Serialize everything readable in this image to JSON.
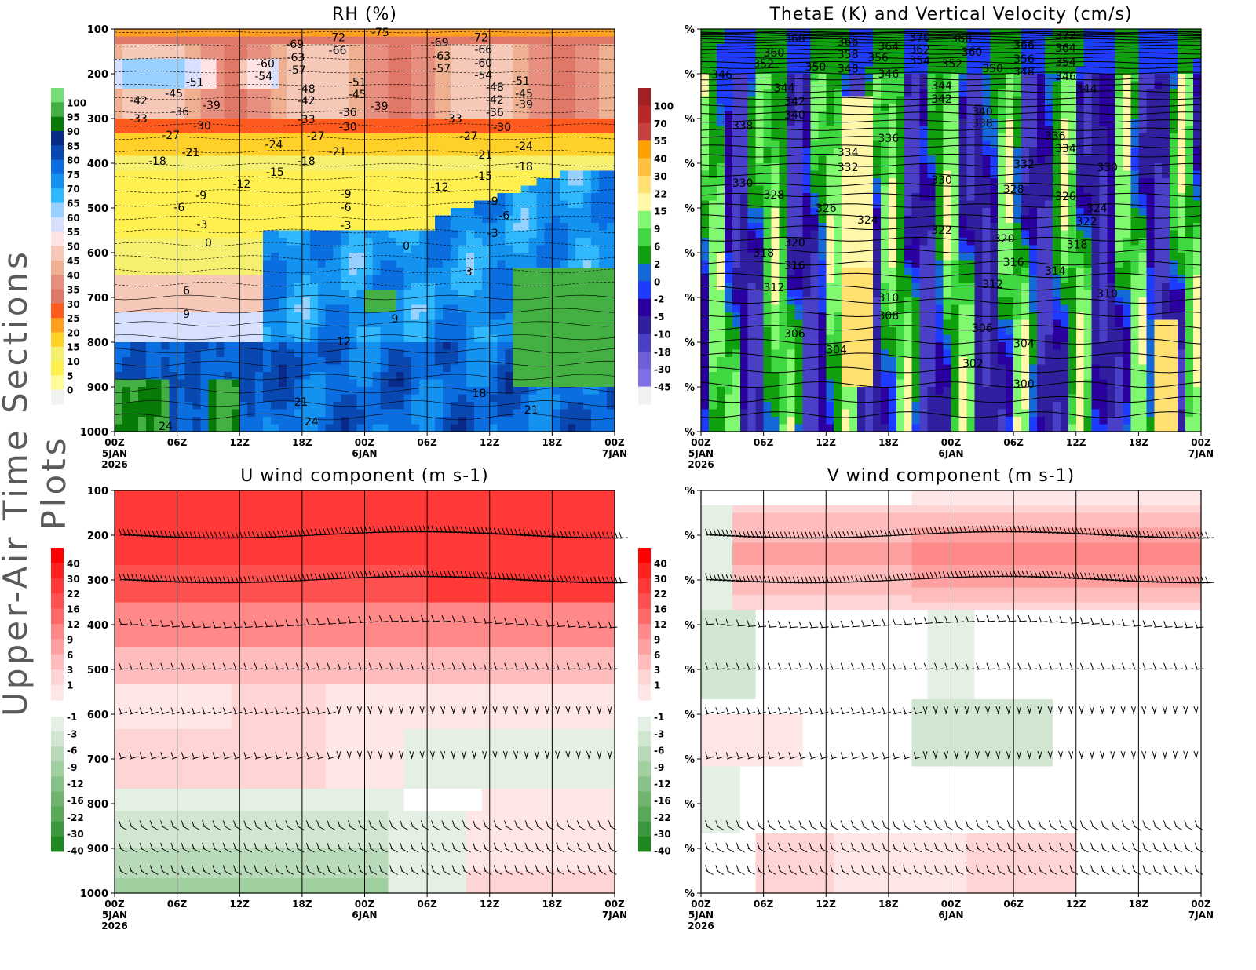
{
  "side_title": "Upper-Air Time Sections Plots",
  "colors": {
    "contour_line": "#000000",
    "grid_line": "#000000",
    "missing": "#f2f2f2"
  },
  "chart_data": [
    {
      "type": "heatmap",
      "title": "RH (%)",
      "y_axis": {
        "label": "",
        "ticks": [
          "100",
          "200",
          "300",
          "400",
          "500",
          "600",
          "700",
          "800",
          "900",
          "1000"
        ],
        "range": [
          100,
          1000
        ],
        "inverted": true
      },
      "x_axis": {
        "ticks": [
          "00Z",
          "06Z",
          "12Z",
          "18Z",
          "00Z",
          "06Z",
          "12Z",
          "18Z",
          "00Z"
        ],
        "date_labels": [
          {
            "at": "00Z 5JAN",
            "lines": [
              "5JAN",
              "2026"
            ]
          },
          {
            "at": "00Z 6JAN",
            "lines": [
              "6JAN"
            ]
          },
          {
            "at": "00Z 7JAN",
            "lines": [
              "7JAN"
            ]
          }
        ],
        "range_hours": [
          0,
          48
        ]
      },
      "grid": true,
      "colorbar": {
        "labels": [
          "100",
          "95",
          "90",
          "85",
          "80",
          "75",
          "70",
          "65",
          "60",
          "55",
          "50",
          "45",
          "40",
          "35",
          "30",
          "25",
          "20",
          "15",
          "10",
          "5",
          "0"
        ],
        "colors": [
          "#77dd77",
          "#44b044",
          "#087a08",
          "#0a2a8a",
          "#0848b0",
          "#0a6ee0",
          "#1492f0",
          "#30b8ff",
          "#98d0ff",
          "#d8e0ff",
          "#ffe2e4",
          "#f5c8b8",
          "#eeb090",
          "#e89080",
          "#e07868",
          "#ff5a1e",
          "#ffa01e",
          "#ffd028",
          "#f5f070",
          "#fff050",
          "#fffa9a",
          "#f2f2f2"
        ]
      },
      "contour_label_units": "temperature (C)",
      "contour_labels": [
        {
          "t": 25.5,
          "p": 107,
          "v": "-75"
        },
        {
          "t": 21.3,
          "p": 118,
          "v": "-72"
        },
        {
          "t": 35,
          "p": 118,
          "v": "-72"
        },
        {
          "t": 17.3,
          "p": 133,
          "v": "-69"
        },
        {
          "t": 31.2,
          "p": 130,
          "v": "-69"
        },
        {
          "t": 21.4,
          "p": 147,
          "v": "-66"
        },
        {
          "t": 35.4,
          "p": 146,
          "v": "-66"
        },
        {
          "t": 17.4,
          "p": 163,
          "v": "-63"
        },
        {
          "t": 31.4,
          "p": 160,
          "v": "-63"
        },
        {
          "t": 14.5,
          "p": 177,
          "v": "-60"
        },
        {
          "t": 35.4,
          "p": 175,
          "v": "-60"
        },
        {
          "t": 17.5,
          "p": 191,
          "v": "-57"
        },
        {
          "t": 31.4,
          "p": 188,
          "v": "-57"
        },
        {
          "t": 14.3,
          "p": 205,
          "v": "-54"
        },
        {
          "t": 35.4,
          "p": 203,
          "v": "-54"
        },
        {
          "t": 7.7,
          "p": 218,
          "v": "-51"
        },
        {
          "t": 23.3,
          "p": 218,
          "v": "-51"
        },
        {
          "t": 39,
          "p": 216,
          "v": "-51"
        },
        {
          "t": 18.4,
          "p": 233,
          "v": "-48"
        },
        {
          "t": 36.5,
          "p": 230,
          "v": "-48"
        },
        {
          "t": 5.7,
          "p": 244,
          "v": "-45"
        },
        {
          "t": 23.3,
          "p": 246,
          "v": "-45"
        },
        {
          "t": 39.3,
          "p": 244,
          "v": "-45"
        },
        {
          "t": 2.3,
          "p": 260,
          "v": "-42"
        },
        {
          "t": 18.4,
          "p": 260,
          "v": "-42"
        },
        {
          "t": 36.5,
          "p": 258,
          "v": "-42"
        },
        {
          "t": 9.3,
          "p": 270,
          "v": "-39"
        },
        {
          "t": 25.4,
          "p": 272,
          "v": "-39"
        },
        {
          "t": 39.3,
          "p": 268,
          "v": "-39"
        },
        {
          "t": 6.3,
          "p": 284,
          "v": "-36"
        },
        {
          "t": 22.4,
          "p": 286,
          "v": "-36"
        },
        {
          "t": 36.5,
          "p": 286,
          "v": "-36"
        },
        {
          "t": 2.3,
          "p": 300,
          "v": "-33"
        },
        {
          "t": 18.4,
          "p": 302,
          "v": "-33"
        },
        {
          "t": 32.5,
          "p": 300,
          "v": "-33"
        },
        {
          "t": 8.4,
          "p": 316,
          "v": "-30"
        },
        {
          "t": 22.4,
          "p": 318,
          "v": "-30"
        },
        {
          "t": 37.2,
          "p": 319,
          "v": "-30"
        },
        {
          "t": 5.4,
          "p": 337,
          "v": "-27"
        },
        {
          "t": 19.3,
          "p": 339,
          "v": "-27"
        },
        {
          "t": 34,
          "p": 339,
          "v": "-27"
        },
        {
          "t": 15.3,
          "p": 358,
          "v": "-24"
        },
        {
          "t": 39.3,
          "p": 361,
          "v": "-24"
        },
        {
          "t": 7.3,
          "p": 375,
          "v": "-21"
        },
        {
          "t": 21.4,
          "p": 374,
          "v": "-21"
        },
        {
          "t": 35.4,
          "p": 381,
          "v": "-21"
        },
        {
          "t": 4.1,
          "p": 395,
          "v": "-18"
        },
        {
          "t": 18.4,
          "p": 395,
          "v": "-18"
        },
        {
          "t": 39.3,
          "p": 407,
          "v": "-18"
        },
        {
          "t": 15.4,
          "p": 419,
          "v": "-15"
        },
        {
          "t": 35.4,
          "p": 428,
          "v": "-15"
        },
        {
          "t": 12.2,
          "p": 446,
          "v": "-12"
        },
        {
          "t": 31.2,
          "p": 453,
          "v": "-12"
        },
        {
          "t": 8.3,
          "p": 472,
          "v": "-9"
        },
        {
          "t": 22.2,
          "p": 468,
          "v": "-9"
        },
        {
          "t": 36.3,
          "p": 484,
          "v": "-9"
        },
        {
          "t": 6.2,
          "p": 498,
          "v": "-6"
        },
        {
          "t": 22.2,
          "p": 498,
          "v": "-6"
        },
        {
          "t": 37.4,
          "p": 517,
          "v": "-6"
        },
        {
          "t": 8.4,
          "p": 537,
          "v": "-3"
        },
        {
          "t": 22.2,
          "p": 539,
          "v": "-3"
        },
        {
          "t": 36.3,
          "p": 556,
          "v": "-3"
        },
        {
          "t": 9,
          "p": 577,
          "v": "0"
        },
        {
          "t": 28,
          "p": 584,
          "v": "0"
        },
        {
          "t": 34,
          "p": 642,
          "v": "3"
        },
        {
          "t": 6.9,
          "p": 684,
          "v": "6"
        },
        {
          "t": 6.9,
          "p": 737,
          "v": "9"
        },
        {
          "t": 26.9,
          "p": 747,
          "v": "9"
        },
        {
          "t": 22,
          "p": 798,
          "v": "12"
        },
        {
          "t": 35,
          "p": 914,
          "v": "18"
        },
        {
          "t": 17.9,
          "p": 933,
          "v": "21"
        },
        {
          "t": 40,
          "p": 951,
          "v": "21"
        },
        {
          "t": 4.9,
          "p": 988,
          "v": "24"
        },
        {
          "t": 18.9,
          "p": 977,
          "v": "24"
        }
      ]
    },
    {
      "type": "heatmap",
      "title": "ThetaE (K) and Vertical Velocity (cm/s)",
      "y_axis": {
        "label": "",
        "ticks": [
          "%",
          "%",
          "%",
          "%",
          "%",
          "%",
          "%",
          "%",
          "%",
          "%"
        ],
        "inverted": true
      },
      "x_axis": {
        "ticks": [
          "00Z",
          "06Z",
          "12Z",
          "18Z",
          "00Z",
          "06Z",
          "12Z",
          "18Z",
          "00Z"
        ],
        "date_labels": [
          {
            "at": "00Z 5JAN",
            "lines": [
              "5JAN",
              "2026"
            ]
          },
          {
            "at": "00Z 6JAN",
            "lines": [
              "6JAN"
            ]
          },
          {
            "at": "00Z 7JAN",
            "lines": [
              "7JAN"
            ]
          }
        ],
        "range_hours": [
          0,
          48
        ]
      },
      "grid": false,
      "colorbar": {
        "labels": [
          "100",
          "70",
          "55",
          "40",
          "30",
          "22",
          "15",
          "9",
          "6",
          "2",
          "0",
          "-2",
          "-5",
          "-10",
          "-18",
          "-30",
          "-45"
        ],
        "colors": [
          "#a52020",
          "#b82828",
          "#c84040",
          "#ffa000",
          "#ffc040",
          "#ffe070",
          "#fff8a8",
          "#80f870",
          "#40d840",
          "#10a010",
          "#1468d8",
          "#1e3cff",
          "#2a00a0",
          "#3020a0",
          "#4a40c8",
          "#7060d8",
          "#8070e8",
          "#f2f2f2"
        ]
      },
      "contour_label_units": "ThetaE (K)",
      "contour_labels": [
        {
          "t": 9,
          "p": 121,
          "v": "368"
        },
        {
          "t": 14.1,
          "p": 128,
          "v": "366"
        },
        {
          "t": 18,
          "p": 139,
          "v": "364"
        },
        {
          "t": 21,
          "p": 118,
          "v": "370"
        },
        {
          "t": 25,
          "p": 121,
          "v": "368"
        },
        {
          "t": 31,
          "p": 135,
          "v": "366"
        },
        {
          "t": 35,
          "p": 114,
          "v": "372"
        },
        {
          "t": 7,
          "p": 153,
          "v": "360"
        },
        {
          "t": 14.1,
          "p": 156,
          "v": "358"
        },
        {
          "t": 17,
          "p": 163,
          "v": "356"
        },
        {
          "t": 21,
          "p": 146,
          "v": "362"
        },
        {
          "t": 26,
          "p": 151,
          "v": "360"
        },
        {
          "t": 31,
          "p": 167,
          "v": "356"
        },
        {
          "t": 35,
          "p": 142,
          "v": "364"
        },
        {
          "t": 6,
          "p": 177,
          "v": "352"
        },
        {
          "t": 11,
          "p": 184,
          "v": "350"
        },
        {
          "t": 14.1,
          "p": 189,
          "v": "348"
        },
        {
          "t": 18,
          "p": 200,
          "v": "346"
        },
        {
          "t": 21,
          "p": 170,
          "v": "354"
        },
        {
          "t": 24.1,
          "p": 177,
          "v": "352"
        },
        {
          "t": 28,
          "p": 188,
          "v": "350"
        },
        {
          "t": 31,
          "p": 195,
          "v": "348"
        },
        {
          "t": 35,
          "p": 174,
          "v": "354"
        },
        {
          "t": 2,
          "p": 202,
          "v": "346"
        },
        {
          "t": 35,
          "p": 205,
          "v": "346"
        },
        {
          "t": 8,
          "p": 232,
          "v": "344"
        },
        {
          "t": 23.1,
          "p": 226,
          "v": "344"
        },
        {
          "t": 37,
          "p": 233,
          "v": "344"
        },
        {
          "t": 9,
          "p": 261,
          "v": "342"
        },
        {
          "t": 23.1,
          "p": 256,
          "v": "342"
        },
        {
          "t": 9,
          "p": 291,
          "v": "340"
        },
        {
          "t": 27,
          "p": 284,
          "v": "340"
        },
        {
          "t": 4,
          "p": 316,
          "v": "338"
        },
        {
          "t": 27,
          "p": 310,
          "v": "338"
        },
        {
          "t": 18,
          "p": 344,
          "v": "336"
        },
        {
          "t": 34,
          "p": 339,
          "v": "336"
        },
        {
          "t": 14.1,
          "p": 375,
          "v": "334"
        },
        {
          "t": 35,
          "p": 367,
          "v": "334"
        },
        {
          "t": 14.1,
          "p": 409,
          "v": "332"
        },
        {
          "t": 31,
          "p": 402,
          "v": "332"
        },
        {
          "t": 4,
          "p": 444,
          "v": "330"
        },
        {
          "t": 23.1,
          "p": 437,
          "v": "330"
        },
        {
          "t": 39,
          "p": 409,
          "v": "330"
        },
        {
          "t": 7,
          "p": 470,
          "v": "328"
        },
        {
          "t": 30,
          "p": 458,
          "v": "328"
        },
        {
          "t": 12,
          "p": 500,
          "v": "326"
        },
        {
          "t": 35,
          "p": 474,
          "v": "326"
        },
        {
          "t": 16,
          "p": 526,
          "v": "324"
        },
        {
          "t": 38,
          "p": 500,
          "v": "324"
        },
        {
          "t": 23.1,
          "p": 549,
          "v": "322"
        },
        {
          "t": 37,
          "p": 530,
          "v": "322"
        },
        {
          "t": 9,
          "p": 577,
          "v": "320"
        },
        {
          "t": 29.1,
          "p": 568,
          "v": "320"
        },
        {
          "t": 6,
          "p": 600,
          "v": "318"
        },
        {
          "t": 36.1,
          "p": 582,
          "v": "318"
        },
        {
          "t": 9,
          "p": 628,
          "v": "316"
        },
        {
          "t": 30,
          "p": 621,
          "v": "316"
        },
        {
          "t": 34,
          "p": 640,
          "v": "314"
        },
        {
          "t": 7,
          "p": 677,
          "v": "312"
        },
        {
          "t": 28,
          "p": 670,
          "v": "312"
        },
        {
          "t": 18,
          "p": 700,
          "v": "310"
        },
        {
          "t": 39,
          "p": 691,
          "v": "310"
        },
        {
          "t": 18,
          "p": 740,
          "v": "308"
        },
        {
          "t": 9,
          "p": 781,
          "v": "306"
        },
        {
          "t": 27,
          "p": 768,
          "v": "306"
        },
        {
          "t": 13,
          "p": 817,
          "v": "304"
        },
        {
          "t": 31,
          "p": 803,
          "v": "304"
        },
        {
          "t": 26.1,
          "p": 847,
          "v": "302"
        },
        {
          "t": 31,
          "p": 893,
          "v": "300"
        }
      ]
    },
    {
      "type": "heatmap",
      "title": "U wind component (m s-1)",
      "y_axis": {
        "label": "",
        "ticks": [
          "100",
          "200",
          "300",
          "400",
          "500",
          "600",
          "700",
          "800",
          "900",
          "1000"
        ],
        "range": [
          100,
          1000
        ],
        "inverted": true
      },
      "x_axis": {
        "ticks": [
          "00Z",
          "06Z",
          "12Z",
          "18Z",
          "00Z",
          "06Z",
          "12Z",
          "18Z",
          "00Z"
        ],
        "date_labels": [
          {
            "at": "00Z 5JAN",
            "lines": [
              "5JAN",
              "2026"
            ]
          },
          {
            "at": "00Z 6JAN",
            "lines": [
              "6JAN"
            ]
          },
          {
            "at": "00Z 7JAN",
            "lines": [
              "7JAN"
            ]
          }
        ],
        "range_hours": [
          0,
          48
        ]
      },
      "grid": true,
      "wind_barbs": true,
      "colorbar": {
        "labels_positive": [
          "40",
          "30",
          "22",
          "16",
          "12",
          "9",
          "6",
          "3",
          "1"
        ],
        "labels_negative": [
          "-1",
          "-3",
          "-6",
          "-9",
          "-12",
          "-16",
          "-22",
          "-30",
          "-40"
        ],
        "colors_positive": [
          "#ff0000",
          "#ff2020",
          "#ff3838",
          "#ff5050",
          "#ff6868",
          "#ff8888",
          "#ffa0a0",
          "#ffbcbc",
          "#ffd4d4",
          "#ffe6e6"
        ],
        "colors_negative": [
          "#e4f0e4",
          "#d0e6d0",
          "#b8dab8",
          "#a0cfa0",
          "#88c288",
          "#70b470",
          "#58a858",
          "#3c983c",
          "#208820"
        ]
      }
    },
    {
      "type": "heatmap",
      "title": "V wind component (m s-1)",
      "y_axis": {
        "label": "",
        "ticks": [
          "%",
          "%",
          "%",
          "%",
          "%",
          "%",
          "%",
          "%",
          "%",
          "%"
        ],
        "inverted": true
      },
      "x_axis": {
        "ticks": [
          "00Z",
          "06Z",
          "12Z",
          "18Z",
          "00Z",
          "06Z",
          "12Z",
          "18Z",
          "00Z"
        ],
        "date_labels": [
          {
            "at": "00Z 5JAN",
            "lines": [
              "5JAN",
              "2026"
            ]
          },
          {
            "at": "00Z 6JAN",
            "lines": [
              "6JAN"
            ]
          },
          {
            "at": "00Z 7JAN",
            "lines": [
              "7JAN"
            ]
          }
        ],
        "range_hours": [
          0,
          48
        ]
      },
      "grid": true,
      "wind_barbs": true,
      "colorbar": {
        "labels_positive": [
          "40",
          "30",
          "22",
          "16",
          "12",
          "9",
          "6",
          "3",
          "1"
        ],
        "labels_negative": [
          "-1",
          "-3",
          "-6",
          "-9",
          "-12",
          "-16",
          "-22",
          "-30",
          "-40"
        ],
        "colors_positive": [
          "#ff0000",
          "#ff2020",
          "#ff3838",
          "#ff5050",
          "#ff6868",
          "#ff8888",
          "#ffa0a0",
          "#ffbcbc",
          "#ffd4d4",
          "#ffe6e6"
        ],
        "colors_negative": [
          "#e4f0e4",
          "#d0e6d0",
          "#b8dab8",
          "#a0cfa0",
          "#88c288",
          "#70b470",
          "#58a858",
          "#3c983c",
          "#208820"
        ]
      }
    }
  ]
}
